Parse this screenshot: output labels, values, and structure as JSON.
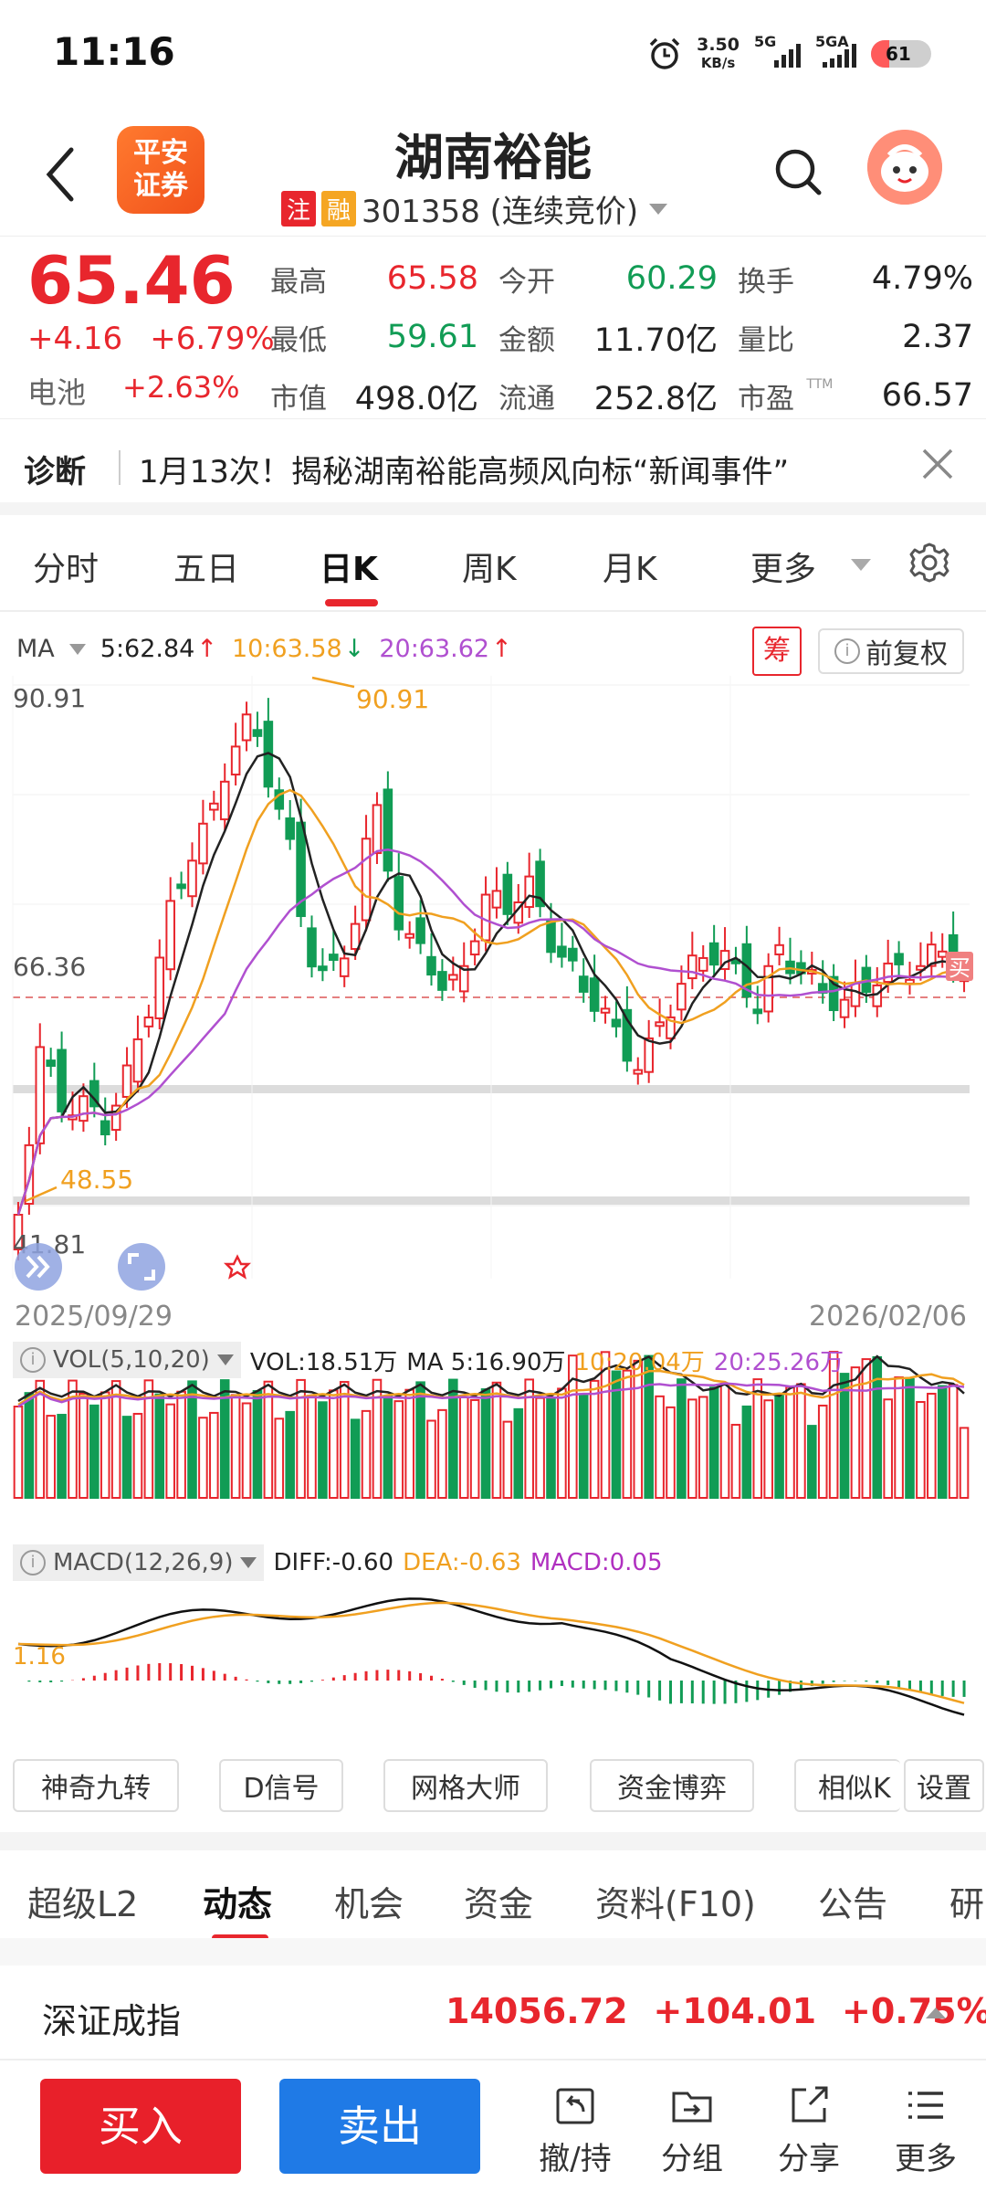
{
  "status": {
    "time": "11:16",
    "net_speed_value": "3.50",
    "net_speed_unit": "KB/s",
    "sig1": "5G",
    "sig2": "5GA",
    "battery": "61"
  },
  "header": {
    "logo_line1": "平安",
    "logo_line2": "证券",
    "stock_name": "湖南裕能",
    "tag_zhu": "注",
    "tag_rong": "融",
    "code_status": "301358 (连续竞价)"
  },
  "quote": {
    "price": "65.46",
    "change": "+4.16",
    "change_pct": "+6.79%",
    "sector": "电池",
    "sector_pct": "+2.63%",
    "rows": [
      [
        {
          "k": "最高",
          "v": "65.58",
          "c": "red"
        },
        {
          "k": "今开",
          "v": "60.29",
          "c": "green"
        },
        {
          "k": "换手",
          "v": "4.79%",
          "c": "dark"
        }
      ],
      [
        {
          "k": "最低",
          "v": "59.61",
          "c": "green"
        },
        {
          "k": "金额",
          "v": "11.70亿",
          "c": "dark"
        },
        {
          "k": "量比",
          "v": "2.37",
          "c": "dark"
        }
      ],
      [
        {
          "k": "市值",
          "v": "498.0亿",
          "c": "dark"
        },
        {
          "k": "流通",
          "v": "252.8亿",
          "c": "dark"
        },
        {
          "k": "市盈",
          "v": "66.57",
          "c": "dark",
          "sup": "TTM"
        }
      ]
    ]
  },
  "diagnosis": {
    "label": "诊断",
    "text": "1月13次！揭秘湖南裕能高频风向标“新闻事件”"
  },
  "period_tabs": [
    "分时",
    "五日",
    "日K",
    "周K",
    "月K",
    "更多"
  ],
  "ma": {
    "label": "MA",
    "ma5": "5:62.84",
    "ma10": "10:63.58",
    "ma20": "20:63.62",
    "chou": "筹",
    "fuquan": "前复权"
  },
  "kline": {
    "high_label": "90.91",
    "peak_label": "90.91",
    "mid_label": "66.36",
    "low_label": "48.55",
    "bottom_label": "41.81",
    "buy_marker": "买",
    "date_start": "2025/09/29",
    "date_end": "2026/02/06"
  },
  "vol": {
    "name": "VOL(5,10,20)",
    "vol": "VOL:18.51万",
    "ma5": "MA 5:16.90万",
    "ma10": "10:20.04万",
    "ma20": "20:25.26万"
  },
  "macd": {
    "name": "MACD(12,26,9)",
    "diff": "DIFF:-0.60",
    "dea": "DEA:-0.63",
    "macd": "MACD:0.05",
    "axis_label": "1.16"
  },
  "tools": [
    "神奇九转",
    "D信号",
    "网格大师",
    "资金博弈",
    "相似K",
    "设置"
  ],
  "bottom_tabs": [
    "超级L2",
    "动态",
    "机会",
    "资金",
    "资料(F10)",
    "公告",
    "研"
  ],
  "index": {
    "name": "深证成指",
    "value": "14056.72",
    "change": "+104.01",
    "pct": "+0.75%"
  },
  "actions": {
    "buy": "买入",
    "sell": "卖出",
    "items": [
      "撤/持",
      "分组",
      "分享",
      "更多"
    ]
  },
  "colors": {
    "up": "#e8262d",
    "down": "#119c55",
    "ma5": "#222222",
    "ma10": "#f0a020",
    "ma20": "#b050d0",
    "buy": "#e8202a",
    "sell": "#1f7ae6"
  }
}
